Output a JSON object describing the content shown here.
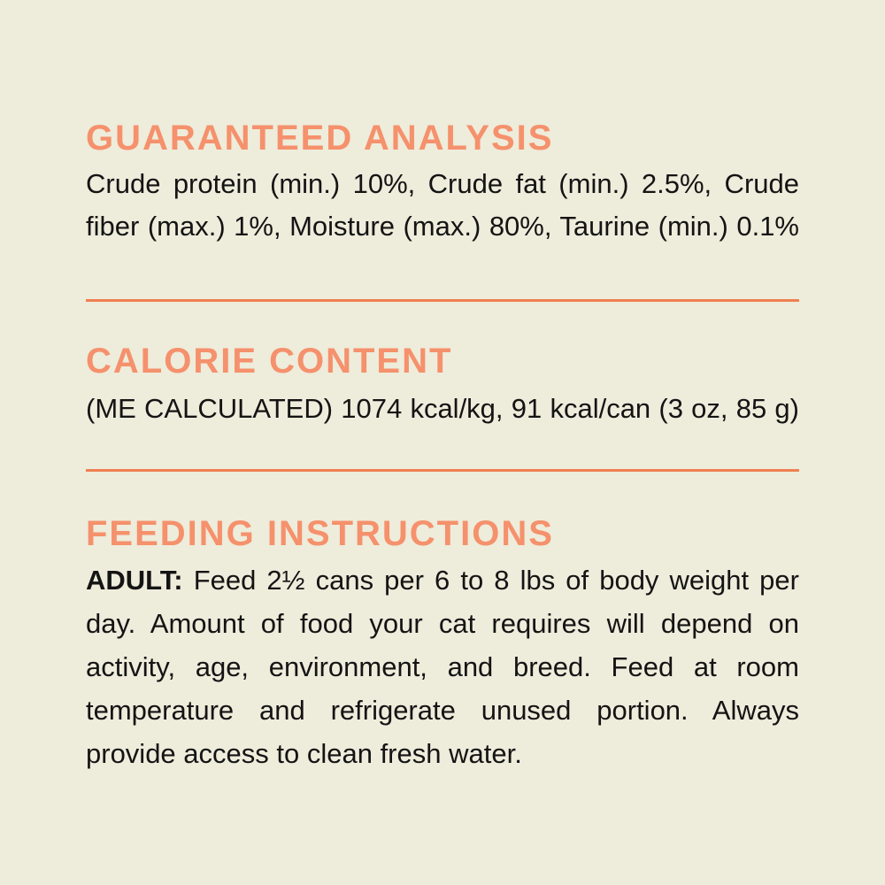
{
  "label": {
    "colors": {
      "background": "#EEECDB",
      "heading": "#F5916C",
      "divider": "#F08052",
      "body_text": "#141414"
    },
    "guaranteed_analysis": {
      "heading": "GUARANTEED ANALYSIS",
      "lines": [
        "Crude protein (min.) 10%, Crude fat (min.) 2.5%, Crude",
        "fiber (max.) 1%, Moisture (max.) 80%, Taurine (min.) 0.1%"
      ]
    },
    "calorie_content": {
      "heading": "CALORIE CONTENT",
      "lines": [
        "(ME CALCULATED) 1074 kcal/kg, 91 kcal/can (3 oz, 85 g)"
      ]
    },
    "feeding_instructions": {
      "heading": "FEEDING INSTRUCTIONS",
      "adult_label": "ADULT:",
      "lines": [
        "Feed 2½ cans per 6 to 8 lbs of body weight per",
        "day. Amount of food your cat requires will depend on",
        "activity, age, environment, and breed. Feed at room",
        "temperature and refrigerate unused portion. Always",
        "provide access to clean fresh water."
      ]
    }
  }
}
